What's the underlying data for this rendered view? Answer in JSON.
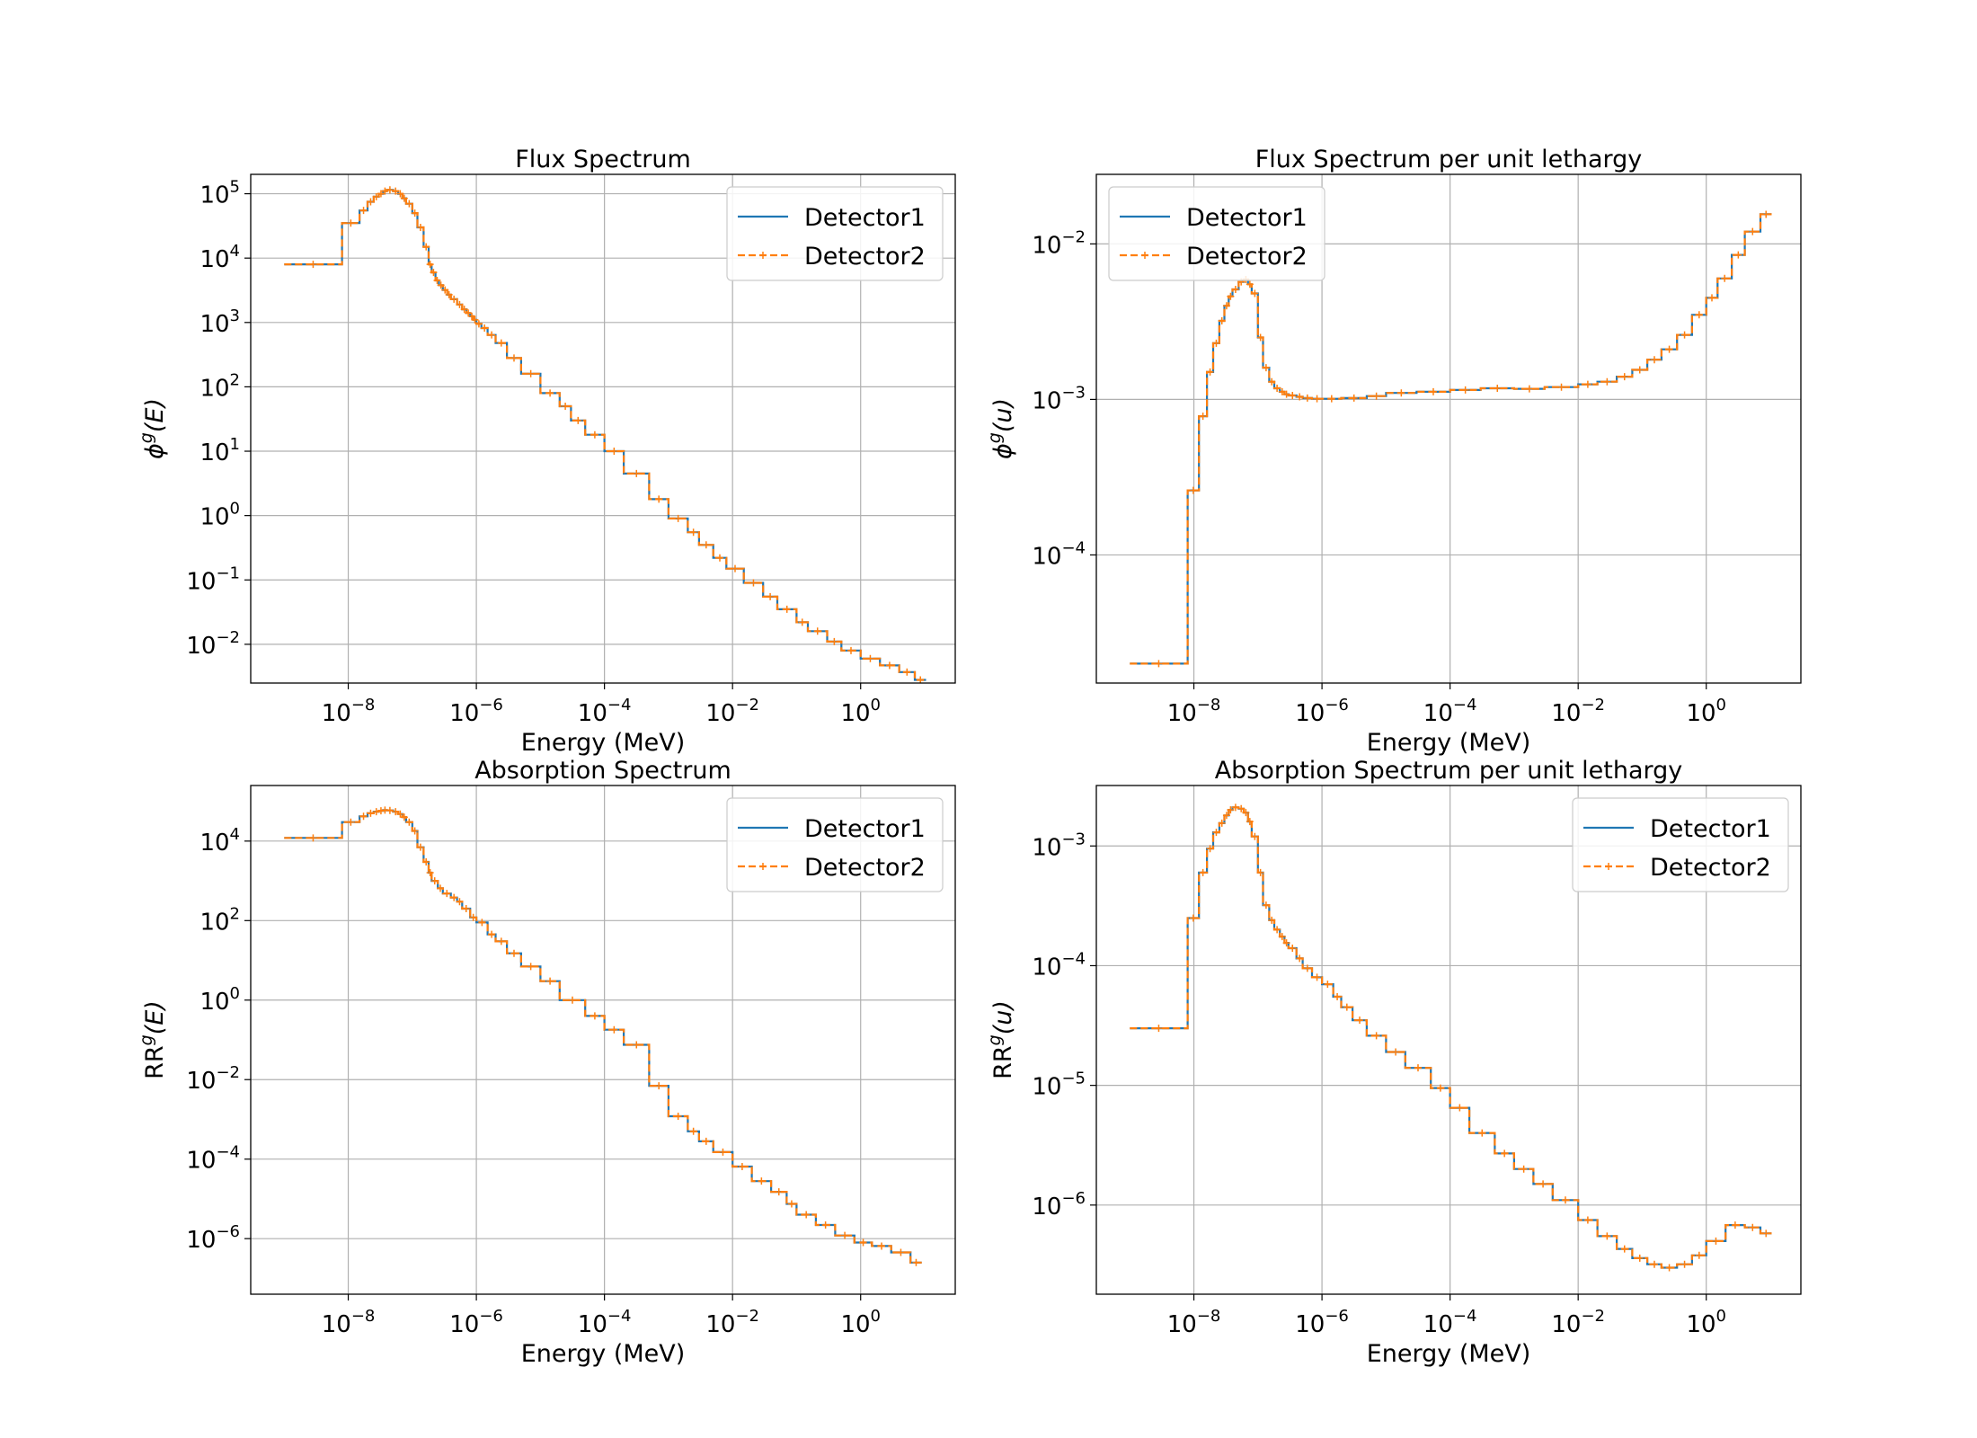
{
  "colors": {
    "detector1": "#1f77b4",
    "detector2": "#ff7f0e",
    "grid": "#b0b0b0",
    "axes": "#000000"
  },
  "chart_data": [
    {
      "type": "line",
      "drawstyle": "steps",
      "title": "Flux Spectrum",
      "xlabel": "Energy (MeV)",
      "ylabel_base": "ϕ",
      "ylabel_sup": "g",
      "ylabel_arg": "(E)",
      "xscale": "log",
      "yscale": "log",
      "xlim": [
        3e-10,
        30
      ],
      "ylim": [
        0.0025,
        200000
      ],
      "xticks": [
        {
          "value": 1e-08,
          "base": "10",
          "exp": "−8"
        },
        {
          "value": 1e-06,
          "base": "10",
          "exp": "−6"
        },
        {
          "value": 0.0001,
          "base": "10",
          "exp": "−4"
        },
        {
          "value": 0.01,
          "base": "10",
          "exp": "−2"
        },
        {
          "value": 1,
          "base": "10",
          "exp": "0"
        }
      ],
      "yticks": [
        {
          "value": 0.01,
          "base": "10",
          "exp": "−2"
        },
        {
          "value": 0.1,
          "base": "10",
          "exp": "−1"
        },
        {
          "value": 1,
          "base": "10",
          "exp": "0"
        },
        {
          "value": 10,
          "base": "10",
          "exp": "1"
        },
        {
          "value": 100,
          "base": "10",
          "exp": "2"
        },
        {
          "value": 1000,
          "base": "10",
          "exp": "3"
        },
        {
          "value": 10000,
          "base": "10",
          "exp": "4"
        },
        {
          "value": 100000,
          "base": "10",
          "exp": "5"
        }
      ],
      "grid": true,
      "legend_position": "top-right",
      "series": [
        {
          "name": "Detector1",
          "style": "solid"
        },
        {
          "name": "Detector2",
          "style": "dashed",
          "marker": "+"
        }
      ],
      "x": [
        1e-09,
        8e-09,
        1.5e-08,
        2e-08,
        2.5e-08,
        3e-08,
        3.5e-08,
        4e-08,
        5e-08,
        6e-08,
        7e-08,
        8e-08,
        1e-07,
        1.2e-07,
        1.5e-07,
        1.8e-07,
        2e-07,
        2.3e-07,
        2.6e-07,
        3e-07,
        3.5e-07,
        4e-07,
        5e-07,
        6e-07,
        7e-07,
        8e-07,
        9e-07,
        1e-06,
        1.2e-06,
        1.5e-06,
        2e-06,
        3e-06,
        5e-06,
        1e-05,
        2e-05,
        3e-05,
        5e-05,
        0.0001,
        0.0002,
        0.0005,
        0.001,
        0.002,
        0.003,
        0.005,
        0.008,
        0.015,
        0.03,
        0.05,
        0.1,
        0.15,
        0.3,
        0.5,
        1,
        2,
        4,
        7
      ],
      "values": [
        8000,
        35000,
        55000,
        75000,
        90000,
        100000,
        110000,
        115000,
        110000,
        100000,
        85000,
        70000,
        50000,
        30000,
        15000,
        8000,
        6000,
        4500,
        3800,
        3200,
        2700,
        2300,
        1900,
        1600,
        1400,
        1250,
        1100,
        950,
        820,
        640,
        480,
        280,
        160,
        80,
        50,
        30,
        18,
        10,
        4.5,
        1.8,
        0.9,
        0.55,
        0.35,
        0.22,
        0.15,
        0.09,
        0.055,
        0.035,
        0.022,
        0.016,
        0.011,
        0.008,
        0.006,
        0.0047,
        0.0037,
        0.0028
      ]
    },
    {
      "type": "line",
      "drawstyle": "steps",
      "title": "Flux Spectrum per unit lethargy",
      "xlabel": "Energy (MeV)",
      "ylabel_base": "ϕ",
      "ylabel_sup": "g",
      "ylabel_arg": "(u)",
      "xscale": "log",
      "yscale": "log",
      "xlim": [
        3e-10,
        30
      ],
      "ylim": [
        1.5e-05,
        0.028
      ],
      "xticks": [
        {
          "value": 1e-08,
          "base": "10",
          "exp": "−8"
        },
        {
          "value": 1e-06,
          "base": "10",
          "exp": "−6"
        },
        {
          "value": 0.0001,
          "base": "10",
          "exp": "−4"
        },
        {
          "value": 0.01,
          "base": "10",
          "exp": "−2"
        },
        {
          "value": 1,
          "base": "10",
          "exp": "0"
        }
      ],
      "yticks": [
        {
          "value": 0.0001,
          "base": "10",
          "exp": "−4"
        },
        {
          "value": 0.001,
          "base": "10",
          "exp": "−3"
        },
        {
          "value": 0.01,
          "base": "10",
          "exp": "−2"
        }
      ],
      "grid": true,
      "legend_position": "top-left",
      "series": [
        {
          "name": "Detector1",
          "style": "solid"
        },
        {
          "name": "Detector2",
          "style": "dashed",
          "marker": "+"
        }
      ],
      "x": [
        1e-09,
        8e-09,
        1.2e-08,
        1.6e-08,
        2e-08,
        2.5e-08,
        3e-08,
        3.5e-08,
        4e-08,
        5e-08,
        6e-08,
        7e-08,
        8e-08,
        1e-07,
        1.2e-07,
        1.5e-07,
        1.8e-07,
        2.2e-07,
        2.6e-07,
        3e-07,
        4e-07,
        5e-07,
        7e-07,
        1e-06,
        2e-06,
        5e-06,
        1e-05,
        3e-05,
        0.0001,
        0.0003,
        0.001,
        0.003,
        0.01,
        0.02,
        0.04,
        0.07,
        0.12,
        0.2,
        0.35,
        0.6,
        1,
        1.5,
        2.5,
        4,
        7
      ],
      "values": [
        2e-05,
        0.00026,
        0.00078,
        0.0015,
        0.0023,
        0.0032,
        0.004,
        0.0046,
        0.0051,
        0.0057,
        0.0059,
        0.0055,
        0.0048,
        0.0025,
        0.0016,
        0.0013,
        0.00118,
        0.00112,
        0.00108,
        0.00106,
        0.00104,
        0.00102,
        0.00101,
        0.00101,
        0.00102,
        0.00105,
        0.0011,
        0.00112,
        0.00115,
        0.00118,
        0.00117,
        0.0012,
        0.00125,
        0.0013,
        0.0014,
        0.00155,
        0.0018,
        0.0021,
        0.0026,
        0.0035,
        0.0045,
        0.006,
        0.0085,
        0.012,
        0.0155
      ]
    },
    {
      "type": "line",
      "drawstyle": "steps",
      "title": "Absorption Spectrum",
      "xlabel": "Energy (MeV)",
      "ylabel_base": "RR",
      "ylabel_sup": "g",
      "ylabel_arg": "(E)",
      "xscale": "log",
      "yscale": "log",
      "xlim": [
        3e-10,
        30
      ],
      "ylim": [
        4e-08,
        250000
      ],
      "xticks": [
        {
          "value": 1e-08,
          "base": "10",
          "exp": "−8"
        },
        {
          "value": 1e-06,
          "base": "10",
          "exp": "−6"
        },
        {
          "value": 0.0001,
          "base": "10",
          "exp": "−4"
        },
        {
          "value": 0.01,
          "base": "10",
          "exp": "−2"
        },
        {
          "value": 1,
          "base": "10",
          "exp": "0"
        }
      ],
      "yticks": [
        {
          "value": 1e-06,
          "base": "10",
          "exp": "−6"
        },
        {
          "value": 0.0001,
          "base": "10",
          "exp": "−4"
        },
        {
          "value": 0.01,
          "base": "10",
          "exp": "−2"
        },
        {
          "value": 1,
          "base": "10",
          "exp": "0"
        },
        {
          "value": 100,
          "base": "10",
          "exp": "2"
        },
        {
          "value": 10000,
          "base": "10",
          "exp": "4"
        }
      ],
      "grid": true,
      "legend_position": "top-right",
      "series": [
        {
          "name": "Detector1",
          "style": "solid"
        },
        {
          "name": "Detector2",
          "style": "dashed",
          "marker": "+"
        }
      ],
      "x": [
        1e-09,
        8e-09,
        1.5e-08,
        2e-08,
        2.5e-08,
        3e-08,
        3.5e-08,
        4e-08,
        5e-08,
        6e-08,
        7e-08,
        8e-08,
        1e-07,
        1.2e-07,
        1.5e-07,
        1.8e-07,
        2e-07,
        2.5e-07,
        3e-07,
        4e-07,
        5e-07,
        6e-07,
        8e-07,
        1e-06,
        1.5e-06,
        2e-06,
        3e-06,
        5e-06,
        1e-05,
        2e-05,
        5e-05,
        0.0001,
        0.0002,
        0.0005,
        0.001,
        0.002,
        0.003,
        0.005,
        0.01,
        0.02,
        0.04,
        0.07,
        0.1,
        0.2,
        0.4,
        0.8,
        1.5,
        3,
        6
      ],
      "values": [
        12000,
        30000,
        42000,
        50000,
        55000,
        58000,
        60000,
        59000,
        55000,
        48000,
        40000,
        30000,
        18000,
        7000,
        3000,
        1600,
        1000,
        650,
        480,
        380,
        300,
        200,
        120,
        90,
        45,
        30,
        15,
        7,
        3,
        1,
        0.4,
        0.18,
        0.075,
        0.007,
        0.0012,
        0.0005,
        0.00028,
        0.00015,
        6.5e-05,
        2.8e-05,
        1.5e-05,
        7.5e-06,
        4e-06,
        2.2e-06,
        1.2e-06,
        8e-07,
        6.5e-07,
        4.5e-07,
        2.5e-07
      ]
    },
    {
      "type": "line",
      "drawstyle": "steps",
      "title": "Absorption Spectrum per unit lethargy",
      "xlabel": "Energy (MeV)",
      "ylabel_base": "RR",
      "ylabel_sup": "g",
      "ylabel_arg": "(u)",
      "xscale": "log",
      "yscale": "log",
      "xlim": [
        3e-10,
        30
      ],
      "ylim": [
        1.8e-07,
        0.0032
      ],
      "xticks": [
        {
          "value": 1e-08,
          "base": "10",
          "exp": "−8"
        },
        {
          "value": 1e-06,
          "base": "10",
          "exp": "−6"
        },
        {
          "value": 0.0001,
          "base": "10",
          "exp": "−4"
        },
        {
          "value": 0.01,
          "base": "10",
          "exp": "−2"
        },
        {
          "value": 1,
          "base": "10",
          "exp": "0"
        }
      ],
      "yticks": [
        {
          "value": 1e-06,
          "base": "10",
          "exp": "−6"
        },
        {
          "value": 1e-05,
          "base": "10",
          "exp": "−5"
        },
        {
          "value": 0.0001,
          "base": "10",
          "exp": "−4"
        },
        {
          "value": 0.001,
          "base": "10",
          "exp": "−3"
        }
      ],
      "grid": true,
      "legend_position": "top-right",
      "series": [
        {
          "name": "Detector1",
          "style": "solid"
        },
        {
          "name": "Detector2",
          "style": "dashed",
          "marker": "+"
        }
      ],
      "x": [
        1e-09,
        8e-09,
        1.2e-08,
        1.6e-08,
        2e-08,
        2.5e-08,
        3e-08,
        3.5e-08,
        4e-08,
        5e-08,
        6e-08,
        7e-08,
        8e-08,
        1e-07,
        1.2e-07,
        1.5e-07,
        1.8e-07,
        2.2e-07,
        2.6e-07,
        3e-07,
        4e-07,
        5e-07,
        7e-07,
        1e-06,
        1.5e-06,
        2e-06,
        3e-06,
        5e-06,
        1e-05,
        2e-05,
        5e-05,
        0.0001,
        0.0002,
        0.0005,
        0.001,
        0.002,
        0.004,
        0.01,
        0.02,
        0.04,
        0.07,
        0.12,
        0.2,
        0.35,
        0.6,
        1,
        2,
        4,
        7
      ],
      "values": [
        3e-05,
        0.00025,
        0.0006,
        0.00095,
        0.0013,
        0.00155,
        0.0018,
        0.002,
        0.0021,
        0.00205,
        0.0019,
        0.0016,
        0.0012,
        0.0006,
        0.00032,
        0.00024,
        0.0002,
        0.000175,
        0.000155,
        0.00014,
        0.000115,
        9.5e-05,
        8e-05,
        7e-05,
        5.5e-05,
        4.5e-05,
        3.5e-05,
        2.6e-05,
        1.9e-05,
        1.4e-05,
        9.5e-06,
        6.5e-06,
        4e-06,
        2.7e-06,
        2e-06,
        1.5e-06,
        1.1e-06,
        7.5e-07,
        5.5e-07,
        4.3e-07,
        3.6e-07,
        3.2e-07,
        3e-07,
        3.2e-07,
        3.8e-07,
        5e-07,
        6.8e-07,
        6.5e-07,
        5.8e-07
      ]
    }
  ]
}
